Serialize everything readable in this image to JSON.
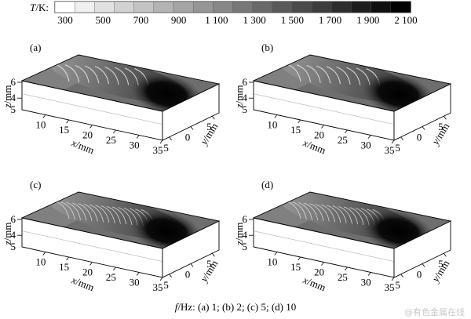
{
  "colorbar": {
    "label_symbol": "T",
    "label_unit": "/K:",
    "ticks": [
      "300",
      "500",
      "700",
      "900",
      "1 100",
      "1 300",
      "1 500",
      "1 700",
      "1 900",
      "2 100"
    ],
    "range": [
      300,
      2100
    ],
    "color_low": "#ffffff",
    "color_high": "#000000"
  },
  "panels": [
    {
      "id": "a",
      "label": "(a)",
      "frequency_hz": 1
    },
    {
      "id": "b",
      "label": "(b)",
      "frequency_hz": 2
    },
    {
      "id": "c",
      "label": "(c)",
      "frequency_hz": 5
    },
    {
      "id": "d",
      "label": "(d)",
      "frequency_hz": 10
    }
  ],
  "axes": {
    "x_label": "x/mm",
    "y_label": "y/mm",
    "z_label": "z/mm",
    "x_ticks": [
      "5",
      "10",
      "15",
      "20",
      "25",
      "30",
      "35"
    ],
    "y_ticks": [
      "5",
      "0",
      "5"
    ],
    "z_ticks": [
      "6",
      "4"
    ]
  },
  "caption": {
    "symbol": "f",
    "text": "/Hz: (a) 1; (b) 2; (c) 5; (d) 10"
  },
  "watermark": "@有色金属在线"
}
